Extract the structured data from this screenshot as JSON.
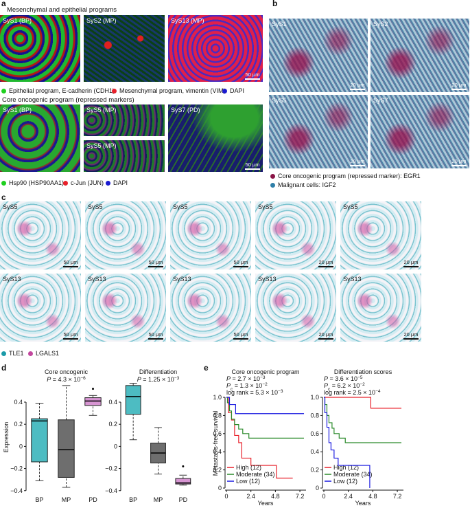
{
  "panel_a": {
    "letter": "a",
    "title1": "Mesenchymal and epithelial programs",
    "images1": [
      {
        "label": "SyS1 (BP)"
      },
      {
        "label": "SyS2 (MP)"
      },
      {
        "label": "SyS13 (MP)",
        "scale": "50 μm"
      }
    ],
    "legend1": [
      {
        "text": "Epithelial program, E-cadherin (CDH1)",
        "color": "#1fd01f"
      },
      {
        "text": "Mesenchymal program, vimentin (VIM)",
        "color": "#e8202a"
      },
      {
        "text": "DAPI",
        "color": "#1a1ad0"
      }
    ],
    "title2": "Core oncogenic program (repressed markers)",
    "images2": [
      {
        "label": "SyS1 (BP)"
      },
      {
        "label": "SyS5 (MP)"
      },
      {
        "label": "SyS5 (MP)"
      },
      {
        "label": "SyS7 (PD)",
        "scale": "50 μm"
      }
    ],
    "legend2": [
      {
        "text": "Hsp90 (HSP90AA1)",
        "color": "#1fd01f"
      },
      {
        "text": "c-Jun (JUN)",
        "color": "#e8202a"
      },
      {
        "text": "DAPI",
        "color": "#1a1ad0"
      }
    ]
  },
  "panel_b": {
    "letter": "b",
    "images": [
      {
        "label": "SyS1",
        "scale": "20 μm"
      },
      {
        "label": "SyS2",
        "scale": "20 μm"
      },
      {
        "label": "SyS5",
        "scale": "20 μm"
      },
      {
        "label": "SyS7",
        "scale": "20 μm"
      }
    ],
    "legend": [
      {
        "text": "Core oncogenic program (repressed marker): EGR1",
        "color": "#8a1446"
      },
      {
        "text": "Malignant cells: IGF2",
        "color": "#2f7fa8"
      }
    ]
  },
  "panel_c": {
    "letter": "c",
    "rows": [
      [
        {
          "label": "SyS5",
          "scale": "50 μm"
        },
        {
          "label": "SyS5",
          "scale": "50 μm"
        },
        {
          "label": "SyS5",
          "scale": "50 μm"
        },
        {
          "label": "SyS5",
          "scale": "20 μm"
        },
        {
          "label": "SyS5",
          "scale": "20 μm"
        }
      ],
      [
        {
          "label": "SyS13",
          "scale": "50 μm"
        },
        {
          "label": "SyS13",
          "scale": "50 μm"
        },
        {
          "label": "SyS13",
          "scale": "50 μm"
        },
        {
          "label": "SyS13",
          "scale": "20 μm"
        },
        {
          "label": "SyS13",
          "scale": "20 μm"
        }
      ]
    ],
    "legend": [
      {
        "text": "TLE1",
        "color": "#1a9aa8"
      },
      {
        "text": "LGALS1",
        "color": "#c2479e"
      }
    ]
  },
  "panel_d": {
    "letter": "d",
    "y_label": "Expression",
    "categories": [
      "BP",
      "MP",
      "PD"
    ],
    "colors": [
      "#4dbcc2",
      "#6e6e6e",
      "#d795d2"
    ],
    "plots": [
      {
        "title": "Core oncogenic",
        "stat": {
          "symbol": "P",
          "mantissa": " = 4.3 × 10",
          "exponent": "−6"
        },
        "ylim": [
          -0.42,
          0.58
        ],
        "yticks": [
          {
            "value": -0.4,
            "label": "−0.4"
          },
          {
            "value": -0.2,
            "label": "−0.2"
          },
          0,
          0.2,
          0.4
        ],
        "boxes": [
          {
            "min": -0.31,
            "q1": -0.14,
            "median": 0.23,
            "q3": 0.25,
            "max": 0.39,
            "outliers": []
          },
          {
            "min": -0.37,
            "q1": -0.28,
            "median": -0.03,
            "q3": 0.24,
            "max": 0.55,
            "outliers": []
          },
          {
            "min": 0.28,
            "q1": 0.37,
            "median": 0.41,
            "q3": 0.44,
            "max": 0.46,
            "outliers": [
              0.52
            ]
          }
        ]
      },
      {
        "title": "Differentiation",
        "stat": {
          "symbol": "P",
          "mantissa": " = 1.25 × 10",
          "exponent": "−3"
        },
        "ylim": [
          -0.42,
          0.58
        ],
        "yticks": [
          {
            "value": -0.4,
            "label": "−0.4"
          },
          {
            "value": -0.2,
            "label": "−0.2"
          },
          0,
          0.2,
          0.4
        ],
        "boxes": [
          {
            "min": 0.06,
            "q1": 0.29,
            "median": 0.45,
            "q3": 0.55,
            "max": 0.57,
            "outliers": []
          },
          {
            "min": -0.25,
            "q1": -0.15,
            "median": -0.06,
            "q3": 0.03,
            "max": 0.17,
            "outliers": []
          },
          {
            "min": -0.35,
            "q1": -0.34,
            "median": -0.33,
            "q3": -0.29,
            "max": -0.26,
            "outliers": [
              -0.18
            ]
          }
        ]
      }
    ]
  },
  "panel_e": {
    "letter": "e",
    "y_label": "Metastasis-free survival",
    "x_label": "Years",
    "plots": [
      {
        "title": "Core oncogenic program",
        "stats": [
          {
            "symbol": "P",
            "mantissa": " = 2.7 × 10",
            "exponent": "−3"
          },
          {
            "symbol": "P",
            "subscript": "c",
            "mantissa": " = 1.3 × 10",
            "exponent": "−2"
          },
          {
            "symbol": "log rank",
            "mantissa": " = 5.3 × 10",
            "exponent": "−3"
          }
        ],
        "xlim": [
          0,
          7.8
        ],
        "ylim": [
          0,
          1
        ],
        "xticks": [
          0,
          2.4,
          4.8,
          7.2
        ],
        "yticks": [
          0,
          0.2,
          0.4,
          0.6,
          0.8,
          {
            "value": 1,
            "label": "1.0"
          }
        ],
        "series": [
          {
            "name": "High (12)",
            "color": "#e8202a",
            "x": [
              0,
              0.2,
              0.5,
              0.8,
              1.2,
              1.5,
              2.4,
              4.9,
              6.5
            ],
            "y": [
              1,
              0.83,
              0.75,
              0.58,
              0.5,
              0.33,
              0.25,
              0.11,
              0.11
            ]
          },
          {
            "name": "Moderate (34)",
            "color": "#2a8a2a",
            "x": [
              0,
              0.1,
              0.3,
              0.5,
              0.8,
              1.2,
              1.6,
              2.2,
              7.6
            ],
            "y": [
              1,
              0.94,
              0.85,
              0.76,
              0.7,
              0.65,
              0.6,
              0.55,
              0.55
            ]
          },
          {
            "name": "Low (12)",
            "color": "#1a1ae0",
            "x": [
              0,
              0.3,
              0.9,
              7.6
            ],
            "y": [
              1,
              0.92,
              0.82,
              0.82
            ]
          }
        ]
      },
      {
        "title": "Differentiation scores",
        "stats": [
          {
            "symbol": "P",
            "mantissa": " = 3.6 × 10",
            "exponent": "−5"
          },
          {
            "symbol": "P",
            "subscript": "c",
            "mantissa": " = 6.2 × 10",
            "exponent": "−2"
          },
          {
            "symbol": "log rank",
            "mantissa": " = 2.5 × 10",
            "exponent": "−4"
          }
        ],
        "xlim": [
          0,
          7.8
        ],
        "ylim": [
          0,
          1
        ],
        "xticks": [
          0,
          2.4,
          4.8,
          7.2
        ],
        "yticks": [
          0,
          0.2,
          0.4,
          0.6,
          0.8,
          {
            "value": 1,
            "label": "1.0"
          }
        ],
        "series": [
          {
            "name": "High (12)",
            "color": "#e8202a",
            "x": [
              0,
              4.6,
              7.6
            ],
            "y": [
              1,
              0.88,
              0.88
            ]
          },
          {
            "name": "Moderate (34)",
            "color": "#2a8a2a",
            "x": [
              0,
              0.1,
              0.3,
              0.5,
              0.8,
              1.0,
              1.5,
              2.1,
              7.6
            ],
            "y": [
              1,
              0.92,
              0.8,
              0.72,
              0.66,
              0.6,
              0.55,
              0.5,
              0.5
            ]
          },
          {
            "name": "Low (12)",
            "color": "#1a1ae0",
            "x": [
              0,
              0.1,
              0.3,
              0.5,
              0.7,
              1.0,
              1.4,
              4.5
            ],
            "y": [
              1,
              0.83,
              0.67,
              0.5,
              0.42,
              0.33,
              0.25,
              0
            ]
          }
        ]
      }
    ]
  }
}
